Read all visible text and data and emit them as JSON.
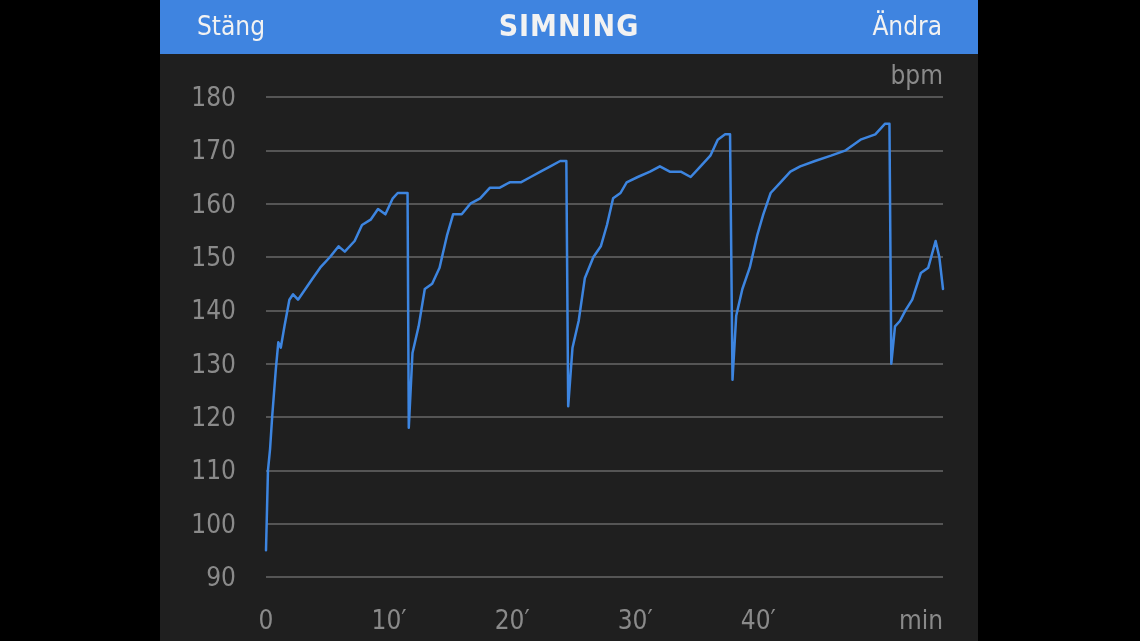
{
  "chart_data": {
    "type": "line",
    "title": "SIMNING",
    "xlabel": "min",
    "ylabel": "bpm",
    "annotations": [
      "Stäng",
      "Ändra"
    ],
    "series": [
      {
        "color": "#3d85e0",
        "x": [
          0,
          0.16,
          0.33,
          0.5,
          0.8,
          1.0,
          1.2,
          1.5,
          1.9,
          2.2,
          2.6,
          3.2,
          3.8,
          4.4,
          5.2,
          5.9,
          6.4,
          7.2,
          7.8,
          8.5,
          9.1,
          9.7,
          10.3,
          10.7,
          11.1,
          11.5,
          11.6,
          11.9,
          12.4,
          12.9,
          13.5,
          14.1,
          14.7,
          15.2,
          15.9,
          16.6,
          17.4,
          18.2,
          19.0,
          19.8,
          20.7,
          21.5,
          22.3,
          23.1,
          23.9,
          24.4,
          24.55,
          24.9,
          25.4,
          25.9,
          26.6,
          27.2,
          27.7,
          28.2,
          28.8,
          29.3,
          30.2,
          31.2,
          32.0,
          32.8,
          33.7,
          34.5,
          35.3,
          36.1,
          36.7,
          37.3,
          37.7,
          37.9,
          38.2,
          38.7,
          39.3,
          39.9,
          40.4,
          41.0,
          41.8,
          42.6,
          43.4,
          44.6,
          45.9,
          47.1,
          48.3,
          49.5,
          50.3,
          50.65,
          50.8,
          51.1,
          51.5,
          51.95,
          52.5,
          53.2,
          53.8,
          54.4,
          54.7,
          55.0
        ],
        "values": [
          95,
          110,
          114,
          120,
          129,
          134,
          133,
          137,
          142,
          143,
          142,
          144,
          146,
          148,
          150,
          152,
          151,
          153,
          156,
          157,
          159,
          158,
          161,
          162,
          162,
          162,
          118,
          132,
          137,
          144,
          145,
          148,
          154,
          158,
          158,
          160,
          161,
          163,
          163,
          164,
          164,
          165,
          166,
          167,
          168,
          168,
          122,
          133,
          138,
          146,
          150,
          152,
          156,
          161,
          162,
          164,
          165,
          166,
          167,
          166,
          166,
          165,
          167,
          169,
          172,
          173,
          173,
          127,
          139,
          144,
          148,
          154,
          158,
          162,
          164,
          166,
          167,
          168,
          169,
          170,
          172,
          173,
          175,
          175,
          130,
          137,
          138,
          140,
          142,
          147,
          148,
          153,
          150,
          144
        ]
      }
    ],
    "xlim": [
      0,
      55
    ],
    "xticks": [
      0,
      {
        "value": 10,
        "label": "10′"
      },
      {
        "value": 20,
        "label": "20′"
      },
      {
        "value": 30,
        "label": "30′"
      },
      {
        "value": 40,
        "label": "40′"
      }
    ],
    "ylim": [
      90,
      180
    ],
    "yticks": [
      90,
      100,
      110,
      120,
      130,
      140,
      150,
      160,
      170,
      180
    ],
    "grid": "y",
    "marker": "none",
    "line_style": "solid"
  }
}
